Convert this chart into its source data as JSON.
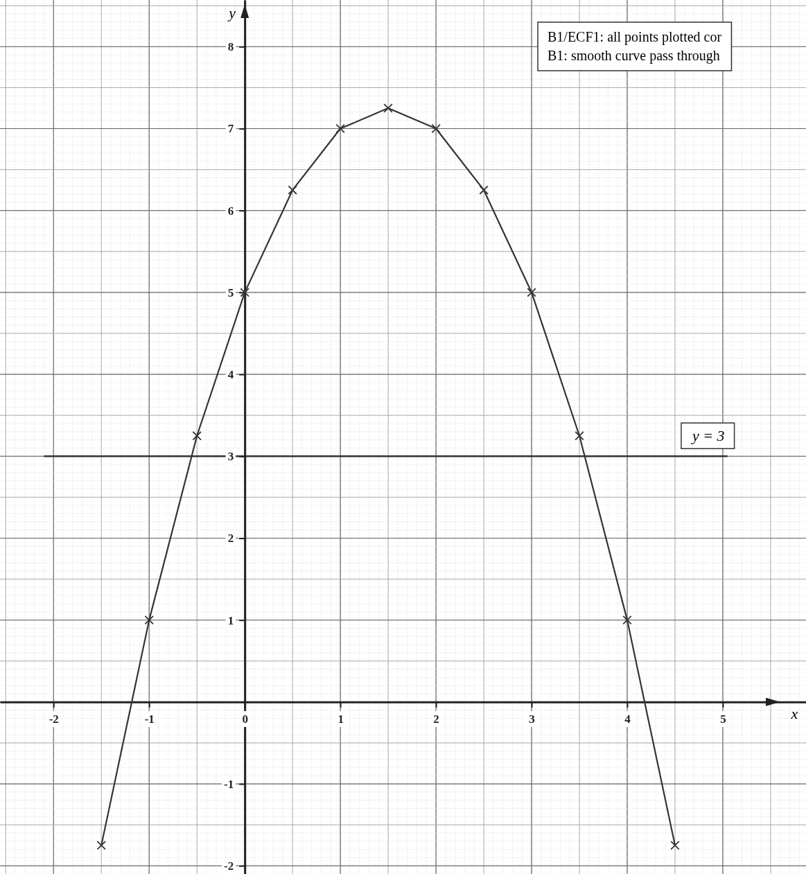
{
  "chart_data": {
    "type": "line",
    "xlabel": "x",
    "ylabel": "y",
    "x": [
      -1.5,
      -1,
      -0.5,
      0,
      0.5,
      1,
      1.5,
      2,
      2.5,
      3,
      3.5,
      4,
      4.5
    ],
    "series": [
      {
        "color": "#333333",
        "values": [
          -1.75,
          1,
          3.25,
          5,
          6.25,
          7,
          7.25,
          7,
          6.25,
          5,
          3.25,
          1,
          -1.75
        ]
      }
    ],
    "xlim": [
      -2.56,
      5.87
    ],
    "ylim": [
      -2.1,
      8.57
    ],
    "xticks": [
      -2,
      -1,
      0,
      1,
      2,
      3,
      4,
      5
    ],
    "yticks": [
      -2,
      -1,
      1,
      2,
      3,
      4,
      5,
      6,
      7,
      8
    ],
    "grid": true,
    "marker": "cross",
    "line_style": "solid",
    "ref_lines": [
      {
        "axis": "y",
        "value": 3,
        "label": "y = 3",
        "color": "#333333"
      }
    ],
    "annotations": [
      "B1/ECF1: all points plotted cor",
      "B1: smooth curve pass through"
    ]
  }
}
